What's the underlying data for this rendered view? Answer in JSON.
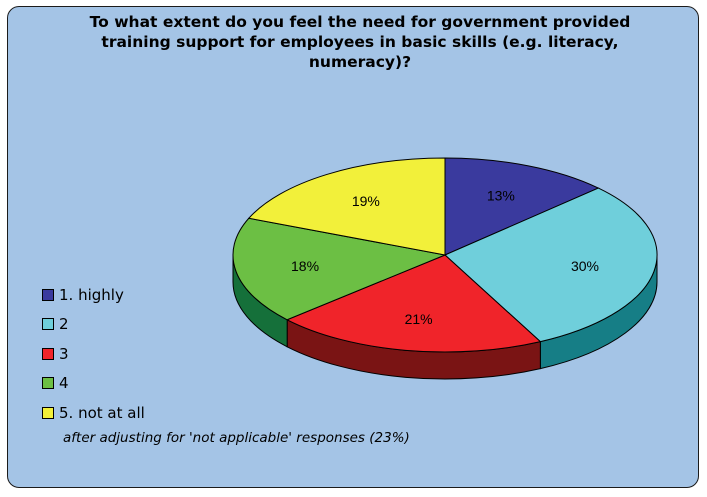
{
  "chart_data": {
    "type": "pie",
    "title": "To what extent do you feel the need for government provided training support for employees in basic skills (e.g. literacy, numeracy)?",
    "slices": [
      {
        "label": "1. highly",
        "value": 13,
        "display": "13%",
        "color": "#3a3a9e",
        "side_color": "#1e1e5c"
      },
      {
        "label": "2",
        "value": 30,
        "display": "30%",
        "color": "#6fcfdb",
        "side_color": "#167e86"
      },
      {
        "label": "3",
        "value": 21,
        "display": "21%",
        "color": "#f0242a",
        "side_color": "#7a1414"
      },
      {
        "label": "4",
        "value": 18,
        "display": "18%",
        "color": "#6cbf44",
        "side_color": "#15703a"
      },
      {
        "label": "5. not at all",
        "value": 19,
        "display": "19%",
        "color": "#f2f03a",
        "side_color": "#8a8a1a"
      }
    ],
    "legend_position": "left",
    "note": "after adjusting for 'not applicable' responses (23%)"
  }
}
